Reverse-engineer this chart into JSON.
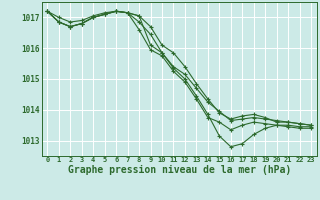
{
  "background_color": "#cceae7",
  "grid_color": "#ffffff",
  "line_color": "#2d6a2d",
  "marker_color": "#2d6a2d",
  "xlabel": "Graphe pression niveau de la mer (hPa)",
  "xlabel_fontsize": 7,
  "ytick_labels": [
    1013,
    1014,
    1015,
    1016,
    1017
  ],
  "xtick_labels": [
    0,
    1,
    2,
    3,
    4,
    5,
    6,
    7,
    8,
    9,
    10,
    11,
    12,
    13,
    14,
    15,
    16,
    17,
    18,
    19,
    20,
    21,
    22,
    23
  ],
  "ylim": [
    1012.5,
    1017.5
  ],
  "xlim": [
    -0.5,
    23.5
  ],
  "series": [
    [
      1017.2,
      1017.0,
      1016.85,
      1016.9,
      1017.05,
      1017.15,
      1017.2,
      1017.15,
      1016.85,
      1016.45,
      1015.85,
      1015.4,
      1015.15,
      1014.7,
      1014.25,
      1013.95,
      1013.65,
      1013.7,
      1013.75,
      1013.7,
      1013.65,
      1013.6,
      1013.55,
      1013.5
    ],
    [
      1017.2,
      1016.85,
      1016.7,
      1016.8,
      1017.0,
      1017.1,
      1017.2,
      1017.15,
      1017.05,
      1016.7,
      1016.1,
      1015.85,
      1015.4,
      1014.85,
      1014.35,
      1013.9,
      1013.7,
      1013.8,
      1013.85,
      1013.75,
      1013.6,
      1013.6,
      1013.55,
      1013.5
    ],
    [
      1017.2,
      1016.85,
      1016.7,
      1016.8,
      1017.0,
      1017.1,
      1017.2,
      1017.15,
      1017.05,
      1016.1,
      1015.85,
      1015.35,
      1015.0,
      1014.45,
      1013.85,
      1013.15,
      1012.8,
      1012.9,
      1013.2,
      1013.4,
      1013.5,
      1013.5,
      1013.45,
      1013.45
    ],
    [
      1017.2,
      1016.85,
      1016.7,
      1016.8,
      1017.0,
      1017.1,
      1017.2,
      1017.15,
      1016.6,
      1015.95,
      1015.75,
      1015.25,
      1014.9,
      1014.35,
      1013.75,
      1013.6,
      1013.35,
      1013.5,
      1013.6,
      1013.55,
      1013.5,
      1013.45,
      1013.4,
      1013.4
    ]
  ]
}
